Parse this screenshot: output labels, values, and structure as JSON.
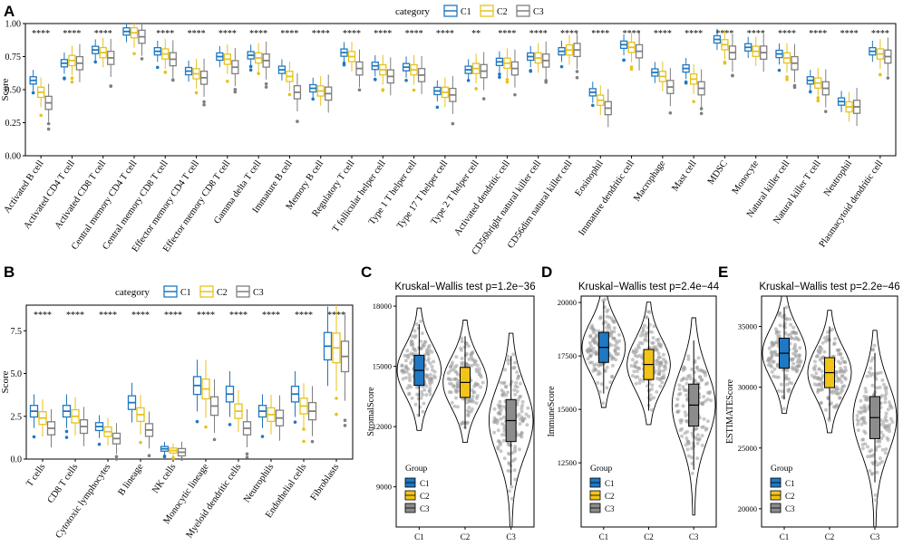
{
  "colors": {
    "C1": "#1f78c1",
    "C2": "#e8c21a",
    "C3": "#7f7f7f",
    "C1_fill": "#1f78c1",
    "C2_fill": "#f2c417",
    "C3_fill": "#8c8c8c"
  },
  "chart_data": [
    {
      "panel": "A",
      "type": "box",
      "ylabel": "Score",
      "ylim": [
        0,
        1
      ],
      "yticks": [
        "0.00",
        "0.25",
        "0.50",
        "0.75",
        "1.00"
      ],
      "legend_title": "category",
      "legend_labels": [
        "C1",
        "C2",
        "C3"
      ],
      "categories": [
        "Activated B cell",
        "Activated CD4 T cell",
        "Activated CD8 T cell",
        "Central memory CD4 T cell",
        "Central memory CD8 T cell",
        "Effector memory CD4 T cell",
        "Effector memory CD8 T cell",
        "Gamma delta T cell",
        "Immature B cell",
        "Memory B cell",
        "Regulatory T cell",
        "T follicular helper cell",
        "Type 1 T helper cell",
        "Type 17 T helper cell",
        "Type 2 T helper cell",
        "Activated dendritic cell",
        "CD56bright natural killer cell",
        "CD56dim natural killer cell",
        "Eosinophil",
        "Immature dendritic cell",
        "Macrophage",
        "Mast cell",
        "MDSC",
        "Monocyte",
        "Natural killer cell",
        "Natural killer T cell",
        "Neutrophil",
        "Plasmacytoid dendritic cell"
      ],
      "significance": [
        "****",
        "****",
        "****",
        "****",
        "****",
        "****",
        "****",
        "****",
        "****",
        "****",
        "****",
        "****",
        "****",
        "****",
        "**",
        "****",
        "****",
        "****",
        "****",
        "****",
        "****",
        "****",
        "****",
        "****",
        "****",
        "****",
        "****",
        "****"
      ],
      "medians": [
        [
          0.57,
          0.48,
          0.4
        ],
        [
          0.7,
          0.72,
          0.7
        ],
        [
          0.8,
          0.78,
          0.74
        ],
        [
          0.94,
          0.93,
          0.9
        ],
        [
          0.79,
          0.77,
          0.73
        ],
        [
          0.64,
          0.62,
          0.59
        ],
        [
          0.75,
          0.73,
          0.67
        ],
        [
          0.76,
          0.74,
          0.72
        ],
        [
          0.65,
          0.6,
          0.48
        ],
        [
          0.51,
          0.49,
          0.47
        ],
        [
          0.78,
          0.75,
          0.66
        ],
        [
          0.68,
          0.65,
          0.6
        ],
        [
          0.67,
          0.65,
          0.61
        ],
        [
          0.49,
          0.48,
          0.46
        ],
        [
          0.65,
          0.66,
          0.64
        ],
        [
          0.71,
          0.7,
          0.66
        ],
        [
          0.75,
          0.74,
          0.72
        ],
        [
          0.79,
          0.8,
          0.8
        ],
        [
          0.48,
          0.42,
          0.36
        ],
        [
          0.84,
          0.82,
          0.79
        ],
        [
          0.63,
          0.6,
          0.52
        ],
        [
          0.66,
          0.58,
          0.51
        ],
        [
          0.88,
          0.84,
          0.78
        ],
        [
          0.82,
          0.79,
          0.78
        ],
        [
          0.77,
          0.74,
          0.7
        ],
        [
          0.57,
          0.55,
          0.51
        ],
        [
          0.41,
          0.37,
          0.37
        ],
        [
          0.79,
          0.77,
          0.75
        ]
      ]
    },
    {
      "panel": "B",
      "type": "box",
      "ylabel": "Score",
      "ylim": [
        0,
        9
      ],
      "yticks": [
        "0.0",
        "2.5",
        "5.0",
        "7.5"
      ],
      "legend_title": "category",
      "legend_labels": [
        "C1",
        "C2",
        "C3"
      ],
      "categories": [
        "T cells",
        "CD8 T cells",
        "Cytotoxic lymphocytes",
        "B lineage",
        "NK cells",
        "Monocytic lineage",
        "Myeloid dendritic cells",
        "Neutrophils",
        "Endothelial cells",
        "Fibroblasts"
      ],
      "significance": [
        "****",
        "****",
        "****",
        "****",
        "****",
        "****",
        "****",
        "****",
        "****",
        "****"
      ],
      "medians": [
        [
          2.8,
          2.4,
          1.8
        ],
        [
          2.8,
          2.5,
          1.9
        ],
        [
          1.9,
          1.6,
          1.2
        ],
        [
          3.3,
          2.6,
          1.7
        ],
        [
          0.6,
          0.5,
          0.4
        ],
        [
          4.3,
          4.1,
          3.1
        ],
        [
          3.8,
          2.8,
          1.8
        ],
        [
          2.8,
          2.6,
          2.4
        ],
        [
          3.8,
          3.1,
          2.8
        ],
        [
          6.6,
          6.5,
          6.0
        ]
      ]
    },
    {
      "panel": "C",
      "type": "violin",
      "title": "Kruskal−Wallis test p=1.2e−36",
      "ylabel": "StromalScore",
      "ylim": [
        7000,
        18500
      ],
      "yticks": [
        "9000",
        "12000",
        "15000",
        "18000"
      ],
      "categories": [
        "C1",
        "C2",
        "C3"
      ],
      "medians": [
        14800,
        14200,
        12300
      ],
      "legend_title": "Group",
      "legend_labels": [
        "C1",
        "C2",
        "C3"
      ]
    },
    {
      "panel": "D",
      "type": "violin",
      "title": "Kruskal−Wallis test p=2.4e−44",
      "ylabel": "ImmuneScore",
      "ylim": [
        9500,
        20300
      ],
      "yticks": [
        "12500",
        "15000",
        "17500",
        "20000"
      ],
      "categories": [
        "C1",
        "C2",
        "C3"
      ],
      "medians": [
        17900,
        17100,
        15200
      ],
      "legend_title": "Group",
      "legend_labels": [
        "C1",
        "C2",
        "C3"
      ]
    },
    {
      "panel": "E",
      "type": "violin",
      "title": "Kruskal−Wallis test p=2.2e−46",
      "ylabel": "ESTIMATEScore",
      "ylim": [
        18500,
        37500
      ],
      "yticks": [
        "20000",
        "25000",
        "30000",
        "35000"
      ],
      "categories": [
        "C1",
        "C2",
        "C3"
      ],
      "medians": [
        32800,
        31200,
        27500
      ],
      "legend_title": "Group",
      "legend_labels": [
        "C1",
        "C2",
        "C3"
      ]
    }
  ]
}
